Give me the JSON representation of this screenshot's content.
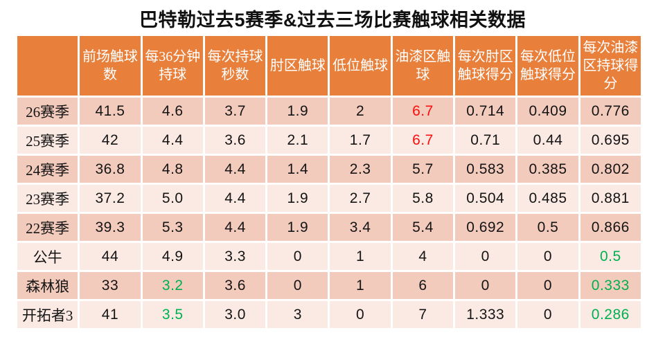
{
  "title": "巴特勒过去5赛季&过去三场比赛触球相关数据",
  "colors": {
    "header_bg": "#E8803C",
    "header_text": "#FFFFFF",
    "row_dark": "#F3CBBD",
    "row_light": "#FBEAE3",
    "body_text": "#141414",
    "highlight_red": "#FB0D0D",
    "highlight_green": "#00B050"
  },
  "chart_data": {
    "type": "table",
    "title": "巴特勒过去5赛季&过去三场比赛触球相关数据",
    "columns": [
      "",
      "前场触球数",
      "每36分钟持球",
      "每次持球秒数",
      "肘区触球",
      "低位触球",
      "油漆区触球",
      "每次肘区触球得分",
      "每次低位触球得分",
      "每次油漆区持球得分"
    ],
    "rows": [
      {
        "label": "26赛季",
        "values": [
          "41.5",
          "4.6",
          "3.7",
          "1.9",
          "2",
          "6.7",
          "0.714",
          "0.409",
          "0.776"
        ],
        "value_colors": [
          "",
          "",
          "",
          "",
          "",
          "red",
          "",
          "",
          ""
        ]
      },
      {
        "label": "25赛季",
        "values": [
          "42",
          "4.4",
          "3.6",
          "2.1",
          "1.7",
          "6.7",
          "0.71",
          "0.44",
          "0.695"
        ],
        "value_colors": [
          "",
          "",
          "",
          "",
          "",
          "red",
          "",
          "",
          ""
        ]
      },
      {
        "label": "24赛季",
        "values": [
          "36.8",
          "4.8",
          "4.4",
          "1.4",
          "2.3",
          "5.7",
          "0.583",
          "0.385",
          "0.802"
        ],
        "value_colors": [
          "",
          "",
          "",
          "",
          "",
          "",
          "",
          "",
          ""
        ]
      },
      {
        "label": "23赛季",
        "values": [
          "37.2",
          "5.0",
          "4.4",
          "1.9",
          "2.7",
          "5.8",
          "0.504",
          "0.485",
          "0.881"
        ],
        "value_colors": [
          "",
          "",
          "",
          "",
          "",
          "",
          "",
          "",
          ""
        ]
      },
      {
        "label": "22赛季",
        "values": [
          "39.3",
          "5.3",
          "4.4",
          "1.9",
          "3.4",
          "5.4",
          "0.692",
          "0.5",
          "0.866"
        ],
        "value_colors": [
          "",
          "",
          "",
          "",
          "",
          "",
          "",
          "",
          ""
        ]
      },
      {
        "label": "公牛",
        "values": [
          "44",
          "4.9",
          "3.3",
          "0",
          "1",
          "4",
          "0",
          "0",
          "0.5"
        ],
        "value_colors": [
          "",
          "",
          "",
          "",
          "",
          "",
          "",
          "",
          "green"
        ]
      },
      {
        "label": "森林狼",
        "values": [
          "33",
          "3.2",
          "3.6",
          "0",
          "1",
          "6",
          "0",
          "0",
          "0.333"
        ],
        "value_colors": [
          "",
          "green",
          "",
          "",
          "",
          "",
          "",
          "",
          "green"
        ]
      },
      {
        "label": "开拓者3",
        "values": [
          "41",
          "3.5",
          "3.0",
          "3",
          "0",
          "7",
          "1.333",
          "0",
          "0.286"
        ],
        "value_colors": [
          "",
          "green",
          "",
          "",
          "",
          "",
          "",
          "",
          "green"
        ]
      }
    ]
  }
}
